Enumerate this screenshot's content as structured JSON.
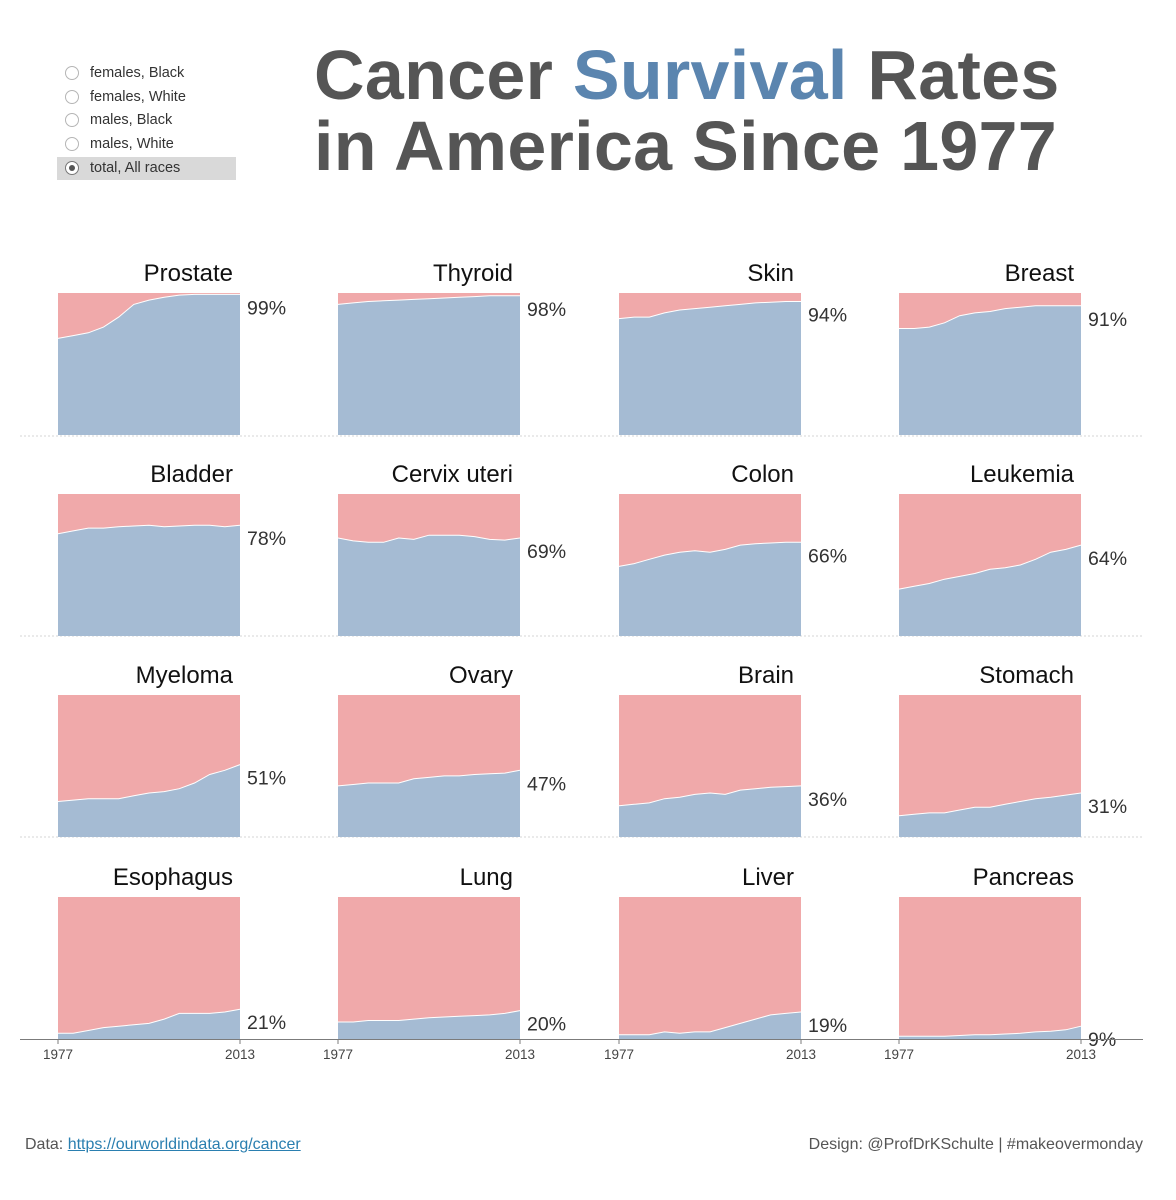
{
  "legend": {
    "items": [
      {
        "label": "females, Black",
        "selected": false
      },
      {
        "label": "females, White",
        "selected": false
      },
      {
        "label": "males, Black",
        "selected": false
      },
      {
        "label": "males, White",
        "selected": false
      },
      {
        "label": "total, All races",
        "selected": true
      }
    ]
  },
  "title": {
    "part1": "Cancer ",
    "accent": "Survival",
    "part2": " Rates",
    "line2": "in America Since 1977"
  },
  "colors": {
    "survival": "#a5bbd3",
    "remainder": "#f0a9aa",
    "accent": "#5b85af",
    "title": "#555555"
  },
  "footer": {
    "data_prefix": "Data: ",
    "data_link": "https://ourworldindata.org/cancer",
    "design": "Design: @ProfDrKSchulte | #makeovermonday"
  },
  "chart_data": {
    "type": "area",
    "x": [
      1977,
      1980,
      1983,
      1986,
      1989,
      1992,
      1995,
      1998,
      2001,
      2004,
      2007,
      2010,
      2013
    ],
    "x_tick_labels": [
      "1977",
      "2013"
    ],
    "ylim": [
      0,
      100
    ],
    "grid": false,
    "panels": [
      {
        "name": "Prostate",
        "label": "99%",
        "values": [
          68,
          70,
          72,
          76,
          83,
          92,
          95,
          97,
          98.5,
          99,
          99,
          99,
          99
        ]
      },
      {
        "name": "Thyroid",
        "label": "98%",
        "values": [
          92,
          93,
          94,
          94.5,
          95,
          95.5,
          96,
          96.5,
          97,
          97.5,
          98,
          98,
          98
        ]
      },
      {
        "name": "Skin",
        "label": "94%",
        "values": [
          82,
          83,
          83,
          86,
          88,
          89,
          90,
          91,
          92,
          93,
          93.5,
          94,
          94
        ]
      },
      {
        "name": "Breast",
        "label": "91%",
        "values": [
          75,
          75,
          76,
          79,
          84,
          86,
          87,
          89,
          90,
          91,
          91,
          91,
          91
        ]
      },
      {
        "name": "Bladder",
        "label": "78%",
        "values": [
          72,
          74,
          76,
          76,
          77,
          77.5,
          78,
          77,
          77.5,
          78,
          78,
          77,
          78
        ]
      },
      {
        "name": "Cervix uteri",
        "label": "69%",
        "values": [
          69,
          67,
          66,
          66,
          69,
          68,
          71,
          71,
          71,
          70,
          68,
          67.5,
          69
        ]
      },
      {
        "name": "Colon",
        "label": "66%",
        "values": [
          49,
          51,
          54,
          57,
          59,
          60,
          59,
          61,
          64,
          65,
          65.5,
          66,
          66
        ]
      },
      {
        "name": "Leukemia",
        "label": "64%",
        "values": [
          33,
          35,
          37,
          40,
          42,
          44,
          47,
          48,
          50,
          54,
          59,
          61,
          64
        ]
      },
      {
        "name": "Myeloma",
        "label": "51%",
        "values": [
          25,
          26,
          27,
          27,
          27,
          29,
          31,
          32,
          34,
          38,
          44,
          47,
          51
        ]
      },
      {
        "name": "Ovary",
        "label": "47%",
        "values": [
          36,
          37,
          38,
          38,
          38,
          41,
          42,
          43,
          43,
          44,
          44.5,
          45,
          47
        ]
      },
      {
        "name": "Brain",
        "label": "36%",
        "values": [
          22,
          23,
          24,
          27,
          28,
          30,
          31,
          30,
          33,
          34,
          35,
          35.5,
          36
        ]
      },
      {
        "name": "Stomach",
        "label": "31%",
        "values": [
          15,
          16,
          17,
          17,
          19,
          21,
          21,
          23,
          25,
          27,
          28,
          29.5,
          31
        ]
      },
      {
        "name": "Esophagus",
        "label": "21%",
        "values": [
          4,
          4,
          6,
          8,
          9,
          10,
          11,
          14,
          18,
          18,
          18,
          19,
          21
        ]
      },
      {
        "name": "Lung",
        "label": "20%",
        "values": [
          12,
          12,
          13,
          13,
          13,
          14,
          15,
          15.5,
          16,
          16.5,
          17,
          18,
          20
        ]
      },
      {
        "name": "Liver",
        "label": "19%",
        "values": [
          3,
          3,
          3,
          5,
          4,
          5,
          5,
          8,
          11,
          14,
          17,
          18,
          19
        ]
      },
      {
        "name": "Pancreas",
        "label": "9%",
        "values": [
          2,
          2,
          2,
          2,
          2.5,
          3,
          3,
          3.5,
          4,
          5,
          5.5,
          6.5,
          9
        ]
      }
    ]
  }
}
